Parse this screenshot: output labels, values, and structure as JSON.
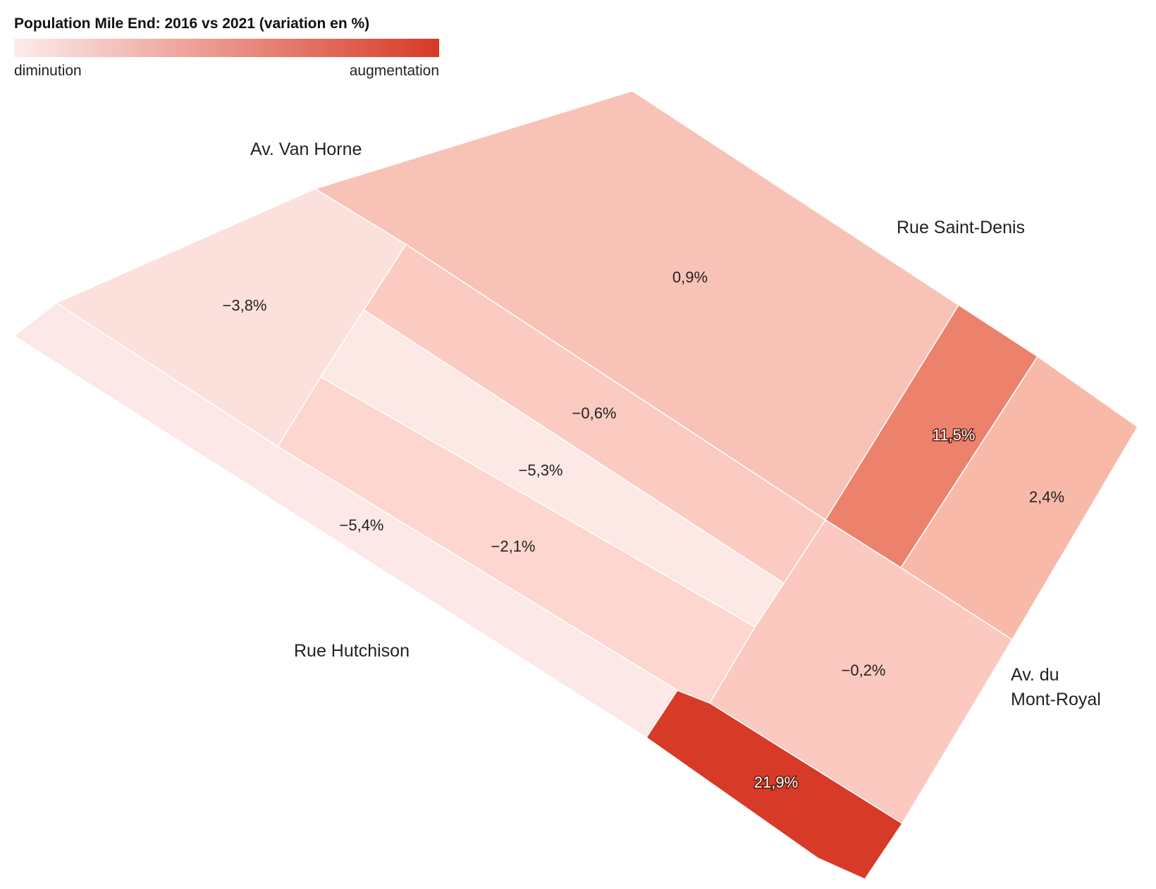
{
  "title": "Population Mile End: 2016 vs 2021 (variation en %)",
  "legend": {
    "low_label": "diminution",
    "high_label": "augmentation",
    "color_low": "#fdecea",
    "color_high": "#d73a26"
  },
  "streets": {
    "van_horne": "Av. Van Horne",
    "saint_denis": "Rue Saint-Denis",
    "hutchison": "Rue Hutchison",
    "mont_royal_1": "Av. du",
    "mont_royal_2": "Mont-Royal"
  },
  "zones": [
    {
      "id": "zone-1",
      "label": "0,9%",
      "value": 0.9,
      "color": "#f9c2b6"
    },
    {
      "id": "zone-2",
      "label": "−3,8%",
      "value": -3.8,
      "color": "#fbe0dc"
    },
    {
      "id": "zone-3",
      "label": "−0,6%",
      "value": -0.6,
      "color": "#fbcbc1"
    },
    {
      "id": "zone-4",
      "label": "−5,3%",
      "value": -5.3,
      "color": "#fce8e5"
    },
    {
      "id": "zone-5",
      "label": "−2,1%",
      "value": -2.1,
      "color": "#fcd6cf"
    },
    {
      "id": "zone-6",
      "label": "−5,4%",
      "value": -5.4,
      "color": "#fce8e6"
    },
    {
      "id": "zone-7",
      "label": "11,5%",
      "value": 11.5,
      "color": "#ec826c"
    },
    {
      "id": "zone-8",
      "label": "2,4%",
      "value": 2.4,
      "color": "#f9b9a9"
    },
    {
      "id": "zone-9",
      "label": "−0,2%",
      "value": -0.2,
      "color": "#fbc9bf"
    },
    {
      "id": "zone-10",
      "label": "21,9%",
      "value": 21.9,
      "color": "#d73a26"
    }
  ]
}
